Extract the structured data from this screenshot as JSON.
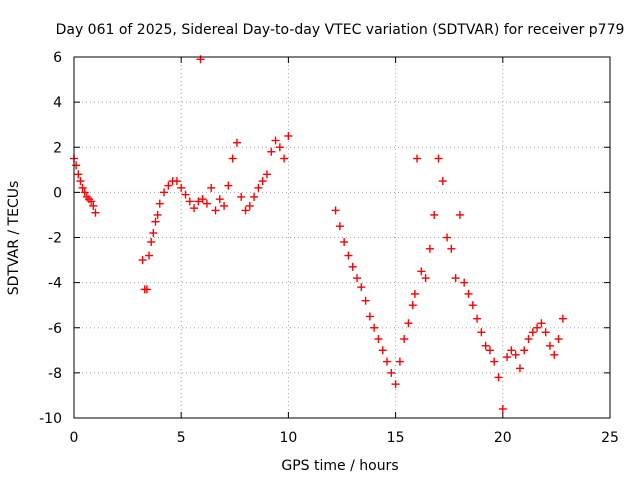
{
  "chart_data": {
    "type": "scatter",
    "title": "Day 061 of 2025, Sidereal Day-to-day VTEC variation (SDTVAR) for receiver p779",
    "xlabel": "GPS time / hours",
    "ylabel": "SDTVAR / TECUs",
    "xlim": [
      0,
      25
    ],
    "ylim": [
      -10,
      6
    ],
    "x_ticks": [
      0,
      5,
      10,
      15,
      20,
      25
    ],
    "y_ticks": [
      -10,
      -8,
      -6,
      -4,
      -2,
      0,
      2,
      4,
      6
    ],
    "grid": true,
    "legend": "none",
    "marker": "plus",
    "series_color": "#ff0000",
    "series": [
      {
        "x": [
          0.0,
          0.1,
          0.2,
          0.3,
          0.4,
          0.5,
          0.6,
          0.7,
          0.8,
          0.9,
          1.0,
          3.2,
          3.3,
          3.4,
          3.5,
          3.6,
          3.7,
          3.8,
          3.9,
          4.0,
          4.2,
          4.4,
          4.6,
          4.8,
          5.0,
          5.2,
          5.4,
          5.6,
          5.8,
          5.9,
          6.0,
          6.2,
          6.4,
          6.6,
          6.8,
          7.0,
          7.2,
          7.4,
          7.6,
          7.8,
          8.0,
          8.2,
          8.4,
          8.6,
          8.8,
          9.0,
          9.2,
          9.4,
          9.6,
          9.8,
          10.0,
          12.2,
          12.4,
          12.6,
          12.8,
          13.0,
          13.2,
          13.4,
          13.6,
          13.8,
          14.0,
          14.2,
          14.4,
          14.6,
          14.8,
          15.0,
          15.2,
          15.4,
          15.6,
          15.8,
          15.9,
          16.0,
          16.2,
          16.4,
          16.6,
          16.8,
          17.0,
          17.2,
          17.4,
          17.6,
          17.8,
          18.0,
          18.2,
          18.4,
          18.6,
          18.8,
          19.0,
          19.2,
          19.4,
          19.6,
          19.8,
          20.0,
          20.2,
          20.4,
          20.6,
          20.8,
          21.0,
          21.2,
          21.4,
          21.6,
          21.8,
          22.0,
          22.2,
          22.4,
          22.6,
          22.8
        ],
        "y": [
          1.5,
          1.2,
          0.8,
          0.5,
          0.2,
          0.0,
          -0.2,
          -0.3,
          -0.4,
          -0.6,
          -0.9,
          -3.0,
          -4.3,
          -4.3,
          -2.8,
          -2.2,
          -1.8,
          -1.3,
          -1.0,
          -0.5,
          0.0,
          0.3,
          0.5,
          0.5,
          0.2,
          -0.1,
          -0.4,
          -0.7,
          -0.4,
          5.9,
          -0.3,
          -0.5,
          0.2,
          -0.8,
          -0.3,
          -0.6,
          0.3,
          1.5,
          2.2,
          -0.2,
          -0.8,
          -0.6,
          -0.2,
          0.2,
          0.5,
          0.8,
          1.8,
          2.3,
          2.0,
          1.5,
          2.5,
          -0.8,
          -1.5,
          -2.2,
          -2.8,
          -3.3,
          -3.8,
          -4.2,
          -4.8,
          -5.5,
          -6.0,
          -6.5,
          -7.0,
          -7.5,
          -8.0,
          -8.5,
          -7.5,
          -6.5,
          -5.8,
          -5.0,
          -4.5,
          1.5,
          -3.5,
          -3.8,
          -2.5,
          -1.0,
          1.5,
          0.5,
          -2.0,
          -2.5,
          -3.8,
          -1.0,
          -4.0,
          -4.5,
          -5.0,
          -5.6,
          -6.2,
          -6.8,
          -7.0,
          -7.5,
          -8.2,
          -9.6,
          -7.3,
          -7.0,
          -7.2,
          -7.8,
          -7.0,
          -6.5,
          -6.2,
          -6.0,
          -5.8,
          -6.2,
          -6.8,
          -7.2,
          -6.5,
          -5.6
        ]
      }
    ]
  }
}
